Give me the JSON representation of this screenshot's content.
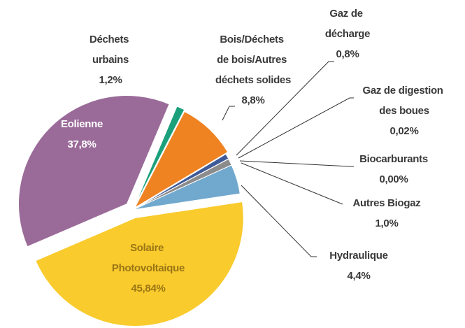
{
  "chart_data": {
    "type": "pie",
    "categories": [
      "Déchets urbains",
      "Bois/Déchets de bois/Autres déchets solides",
      "Gaz de décharge",
      "Gaz de digestion des boues",
      "Biocarburants",
      "Autres Biogaz",
      "Hydraulique",
      "Solaire Photovoltaique",
      "Eolienne"
    ],
    "values": [
      1.2,
      8.8,
      0.8,
      0.02,
      0.0,
      1.0,
      4.4,
      45.84,
      37.8
    ],
    "value_labels": [
      "1,2%",
      "8,8%",
      "0,8%",
      "0,02%",
      "0,00%",
      "1,0%",
      "4,4%",
      "45,84%",
      "37,8%"
    ],
    "colors": [
      "#1ba07c",
      "#ef8322",
      "#3f5a98",
      "#4d4d4d",
      "#b0b0b0",
      "#8c8c8c",
      "#71a8cd",
      "#f9cb2d",
      "#9a6b99"
    ]
  }
}
